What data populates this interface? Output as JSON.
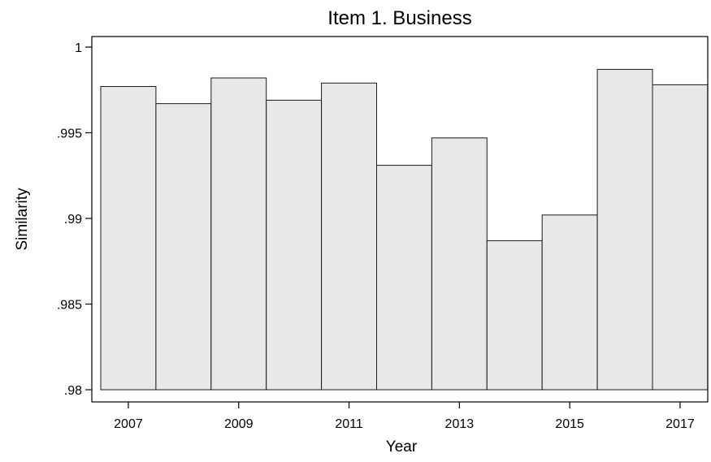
{
  "chart_data": {
    "type": "bar",
    "title": "Item 1. Business",
    "xlabel": "Year",
    "ylabel": "Similarity",
    "categories": [
      2007,
      2008,
      2009,
      2010,
      2011,
      2012,
      2013,
      2014,
      2015,
      2016,
      2017
    ],
    "values": [
      0.9977,
      0.9967,
      0.9982,
      0.9969,
      0.9979,
      0.9931,
      0.9947,
      0.9887,
      0.9902,
      0.9987,
      0.9978
    ],
    "ylim": [
      0.98,
      1.0
    ],
    "yticks": [
      {
        "value": 0.98,
        "label": ".98"
      },
      {
        "value": 0.985,
        "label": ".985"
      },
      {
        "value": 0.99,
        "label": ".99"
      },
      {
        "value": 0.995,
        "label": ".995"
      },
      {
        "value": 1.0,
        "label": "1"
      }
    ],
    "xticks": [
      {
        "value": 2007,
        "label": "2007"
      },
      {
        "value": 2009,
        "label": "2009"
      },
      {
        "value": 2011,
        "label": "2011"
      },
      {
        "value": 2013,
        "label": "2013"
      },
      {
        "value": 2015,
        "label": "2015"
      },
      {
        "value": 2017,
        "label": "2017"
      }
    ],
    "grid": false,
    "legend": "none",
    "colors": {
      "bar_fill": "#e8e8e8",
      "bar_stroke": "#1a1a1a",
      "axis": "#000000"
    }
  }
}
